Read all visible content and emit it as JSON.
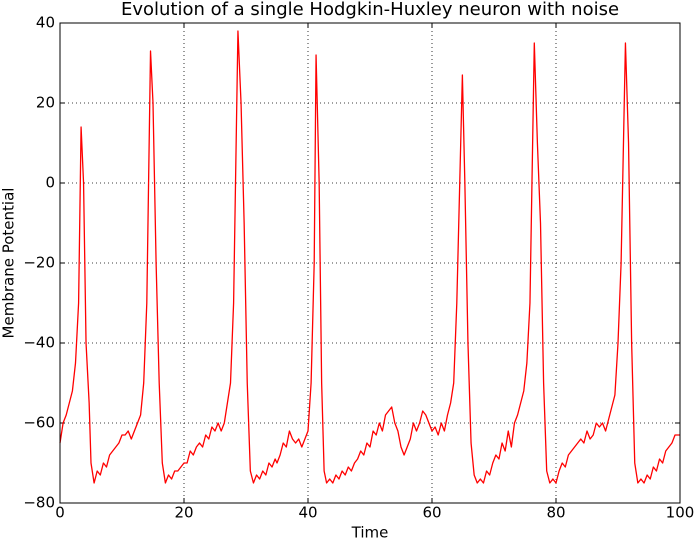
{
  "chart_data": {
    "type": "line",
    "title": "Evolution of a single Hodgkin-Huxley neuron with noise",
    "xlabel": "Time",
    "ylabel": "Membrane Potential",
    "xlim": [
      0,
      100
    ],
    "xticks": [
      0,
      20,
      40,
      60,
      80,
      100
    ],
    "ylim": [
      -80,
      40
    ],
    "yticks": [
      {
        "value": -80,
        "label": "−80"
      },
      {
        "value": -60,
        "label": "−60"
      },
      {
        "value": -40,
        "label": "−40"
      },
      {
        "value": -20,
        "label": "−20"
      },
      0,
      20,
      40
    ],
    "grid": true,
    "x": [
      0,
      0.5,
      1,
      1.5,
      2,
      2.5,
      3,
      3.4,
      3.8,
      4.2,
      4.7,
      5,
      5.5,
      6,
      6.5,
      7,
      7.5,
      8,
      8.5,
      9,
      9.5,
      10,
      10.5,
      11,
      11.5,
      12,
      12.5,
      13,
      13.5,
      14,
      14.6,
      15,
      15.5,
      16,
      16.5,
      17,
      17.5,
      18,
      18.5,
      19,
      19.5,
      20,
      20.5,
      21,
      21.5,
      22,
      22.5,
      23,
      23.5,
      24,
      24.5,
      25,
      25.5,
      26,
      26.5,
      27,
      27.5,
      28,
      28.7,
      29.2,
      29.7,
      30.2,
      30.7,
      31.2,
      31.7,
      32.2,
      32.7,
      33.2,
      33.7,
      34.2,
      34.7,
      35,
      35.5,
      36,
      36.5,
      37,
      37.5,
      38,
      38.5,
      39,
      39.5,
      40,
      40.5,
      41,
      41.3,
      41.8,
      42.2,
      42.6,
      43,
      43.5,
      44,
      44.5,
      45,
      45.5,
      46,
      46.5,
      47,
      47.5,
      48,
      48.5,
      49,
      49.5,
      50,
      50.5,
      51,
      51.5,
      52,
      52.5,
      53,
      53.5,
      54,
      54.5,
      55,
      55.5,
      56,
      56.5,
      57,
      57.5,
      58,
      58.5,
      59,
      59.5,
      60,
      60.5,
      61,
      61.5,
      62,
      62.5,
      63,
      63.5,
      64,
      64.9,
      65.3,
      65.8,
      66.3,
      66.8,
      67.3,
      67.8,
      68.3,
      68.8,
      69.3,
      69.8,
      70.3,
      70.8,
      71.3,
      71.8,
      72.3,
      72.8,
      73.3,
      73.8,
      74.3,
      74.8,
      75.3,
      75.8,
      76.5,
      77,
      77.5,
      78,
      78.5,
      79,
      79.5,
      80,
      80.5,
      81,
      81.5,
      82,
      82.5,
      83,
      83.5,
      84,
      84.5,
      85,
      85.5,
      86,
      86.5,
      87,
      87.5,
      88,
      88.5,
      89,
      89.5,
      90,
      90.5,
      91.2,
      91.7,
      92.2,
      92.7,
      93.2,
      93.7,
      94.2,
      94.7,
      95.2,
      95.7,
      96.2,
      96.7,
      97.2,
      97.7,
      98.2,
      98.7,
      99.2,
      100
    ],
    "series": [
      {
        "color": "#ff0000",
        "values": [
          -65,
          -60,
          -58,
          -55,
          -52,
          -45,
          -30,
          14,
          0,
          -40,
          -55,
          -70,
          -75,
          -72,
          -73,
          -70,
          -71,
          -68,
          -67,
          -66,
          -65,
          -63,
          -63,
          -62,
          -64,
          -62,
          -60,
          -58,
          -50,
          -30,
          33,
          20,
          -20,
          -50,
          -70,
          -75,
          -73,
          -74,
          -72,
          -72,
          -71,
          -70,
          -70,
          -67,
          -68,
          -66,
          -65,
          -66,
          -63,
          -64,
          -61,
          -62,
          -60,
          -62,
          -60,
          -55,
          -50,
          -30,
          38,
          20,
          -10,
          -50,
          -72,
          -75,
          -73,
          -74,
          -72,
          -73,
          -70,
          -71,
          -69,
          -70,
          -68,
          -65,
          -66,
          -62,
          -64,
          -65,
          -64,
          -66,
          -64,
          -62,
          -50,
          -20,
          32,
          0,
          -50,
          -72,
          -75,
          -74,
          -75,
          -73,
          -74,
          -72,
          -73,
          -71,
          -72,
          -70,
          -69,
          -67,
          -68,
          -65,
          -66,
          -62,
          -63,
          -60,
          -62,
          -58,
          -57,
          -56,
          -60,
          -62,
          -66,
          -68,
          -66,
          -64,
          -60,
          -62,
          -60,
          -57,
          -58,
          -60,
          -62,
          -61,
          -63,
          -60,
          -62,
          -58,
          -55,
          -50,
          -30,
          27,
          0,
          -40,
          -65,
          -73,
          -75,
          -74,
          -75,
          -72,
          -73,
          -70,
          -68,
          -69,
          -65,
          -67,
          -62,
          -66,
          -60,
          -58,
          -55,
          -52,
          -45,
          -30,
          35,
          10,
          -10,
          -50,
          -72,
          -75,
          -74,
          -75,
          -72,
          -70,
          -71,
          -68,
          -67,
          -66,
          -65,
          -64,
          -65,
          -62,
          -64,
          -63,
          -60,
          -61,
          -60,
          -62,
          -59,
          -56,
          -53,
          -40,
          -20,
          35,
          10,
          -40,
          -70,
          -75,
          -74,
          -75,
          -73,
          -74,
          -71,
          -72,
          -69,
          -70,
          -67,
          -66,
          -65,
          -63,
          -63
        ]
      }
    ]
  }
}
